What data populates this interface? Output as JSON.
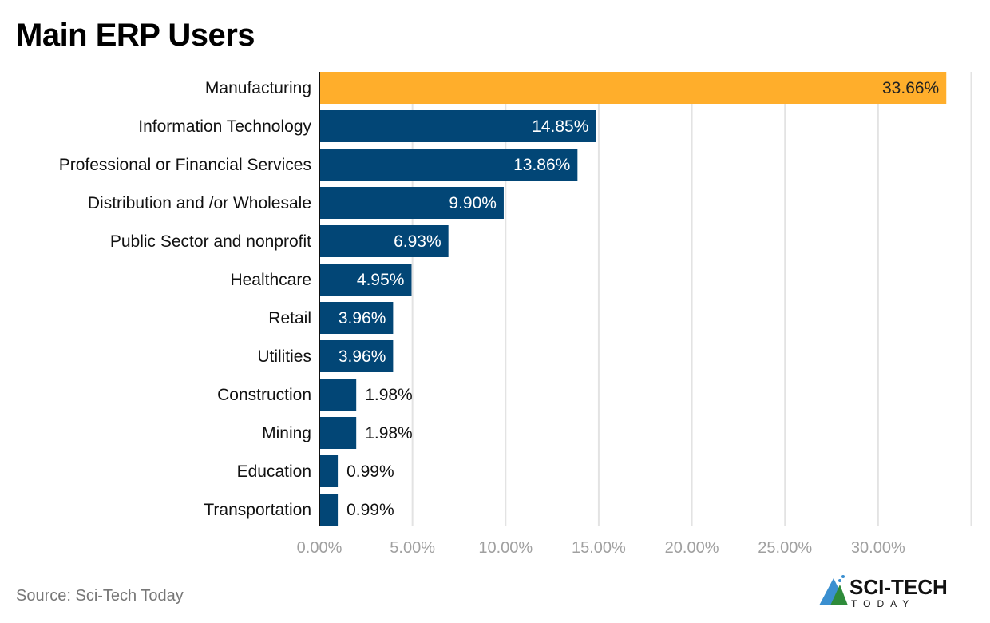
{
  "chart_data": {
    "type": "bar",
    "orientation": "horizontal",
    "title": "Main ERP Users",
    "categories": [
      "Manufacturing",
      "Information Technology",
      "Professional or Financial Services",
      "Distribution and /or Wholesale",
      "Public Sector and nonprofit",
      "Healthcare",
      "Retail",
      "Utilities",
      "Construction",
      "Mining",
      "Education",
      "Transportation"
    ],
    "values": [
      33.66,
      14.85,
      13.86,
      9.9,
      6.93,
      4.95,
      3.96,
      3.96,
      1.98,
      1.98,
      0.99,
      0.99
    ],
    "data_labels": [
      "33.66%",
      "14.85%",
      "13.86%",
      "9.90%",
      "6.93%",
      "4.95%",
      "3.96%",
      "3.96%",
      "1.98%",
      "1.98%",
      "0.99%",
      "0.99%"
    ],
    "xlim": [
      0,
      35
    ],
    "x_ticks": [
      0,
      5,
      10,
      15,
      20,
      25,
      30
    ],
    "x_tick_labels": [
      "0.00%",
      "5.00%",
      "10.00%",
      "15.00%",
      "20.00%",
      "25.00%",
      "30.00%"
    ],
    "grid": true,
    "colors": {
      "highlight": "#FFAE2B",
      "default": "#024676",
      "grid": "#e3e3e3",
      "tick_text": "#a0a0a0"
    },
    "highlight_index": 0
  },
  "footer": {
    "source": "Source: Sci-Tech Today"
  },
  "logo": {
    "text": "SCI-TECH",
    "subtext": "TODAY"
  }
}
